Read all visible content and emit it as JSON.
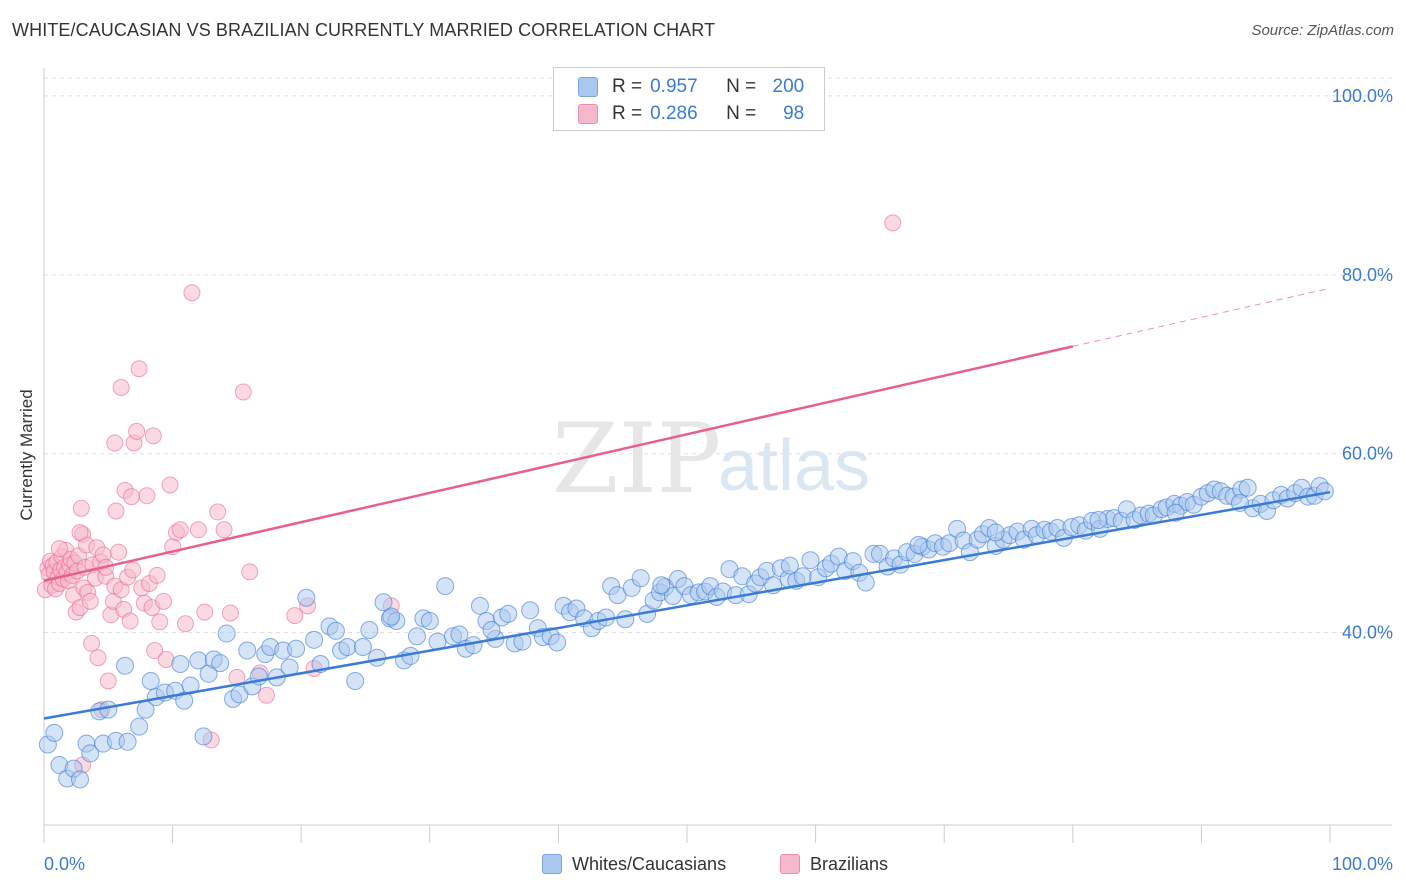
{
  "header": {
    "title": "WHITE/CAUCASIAN VS BRAZILIAN CURRENTLY MARRIED CORRELATION CHART",
    "source": "Source: ZipAtlas.com"
  },
  "legend_top": {
    "rows": [
      {
        "r_label": "R =",
        "r_value": "0.957",
        "n_label": "N =",
        "n_value": "200"
      },
      {
        "r_label": "R =",
        "r_value": "0.286",
        "n_label": "N =",
        "n_value": "98"
      }
    ]
  },
  "legend_bottom": {
    "items": [
      {
        "label": "Whites/Caucasians"
      },
      {
        "label": "Brazilians"
      }
    ]
  },
  "watermark": {
    "zip": "ZIP",
    "atlas": "atlas"
  },
  "colors": {
    "blue": "#3a7bd5",
    "blue_fill": "#a9c8ee",
    "pink": "#e8608a",
    "pink_fill": "#f6b9cc",
    "axis_text": "#3a7bd5",
    "grid": "#dddddd"
  },
  "chart_data": {
    "type": "scatter",
    "title": "WHITE/CAUCASIAN VS BRAZILIAN CURRENTLY MARRIED CORRELATION CHART",
    "xlabel": "",
    "ylabel": "Currently Married",
    "xlim": [
      0,
      100
    ],
    "ylim": [
      18.5,
      102
    ],
    "x_tick_labels": [
      "0.0%",
      "100.0%"
    ],
    "y_ticks": [
      40,
      60,
      80,
      100
    ],
    "y_tick_labels": [
      "40.0%",
      "60.0%",
      "80.0%",
      "100.0%"
    ],
    "grid": true,
    "series": [
      {
        "name": "Whites/Caucasians",
        "R": 0.957,
        "N": 200,
        "trend": {
          "x0": 0,
          "y0": 30.4,
          "x1": 100,
          "y1": 55.7
        },
        "points": [
          [
            0.3,
            27.5
          ],
          [
            0.8,
            28.8
          ],
          [
            1.2,
            25.2
          ],
          [
            1.8,
            23.7
          ],
          [
            2.3,
            24.8
          ],
          [
            2.8,
            23.6
          ],
          [
            3.3,
            27.6
          ],
          [
            3.6,
            26.5
          ],
          [
            4.3,
            31.2
          ],
          [
            4.6,
            27.6
          ],
          [
            5.0,
            31.4
          ],
          [
            5.6,
            27.9
          ],
          [
            6.3,
            36.3
          ],
          [
            6.5,
            27.8
          ],
          [
            7.4,
            29.5
          ],
          [
            7.9,
            31.4
          ],
          [
            8.3,
            34.6
          ],
          [
            8.7,
            32.8
          ],
          [
            9.4,
            33.3
          ],
          [
            10.2,
            33.5
          ],
          [
            10.6,
            36.5
          ],
          [
            10.9,
            32.4
          ],
          [
            11.4,
            34.1
          ],
          [
            12.0,
            36.9
          ],
          [
            12.4,
            28.4
          ],
          [
            12.8,
            35.4
          ],
          [
            13.2,
            37.0
          ],
          [
            13.7,
            36.6
          ],
          [
            14.2,
            39.9
          ],
          [
            14.7,
            32.6
          ],
          [
            15.2,
            33.1
          ],
          [
            15.8,
            38.0
          ],
          [
            16.2,
            34.0
          ],
          [
            16.7,
            35.1
          ],
          [
            17.2,
            37.6
          ],
          [
            17.6,
            38.4
          ],
          [
            18.1,
            35.0
          ],
          [
            18.6,
            38.0
          ],
          [
            19.1,
            36.1
          ],
          [
            19.6,
            38.2
          ],
          [
            20.4,
            43.9
          ],
          [
            21.0,
            39.2
          ],
          [
            21.5,
            36.5
          ],
          [
            22.2,
            40.7
          ],
          [
            22.7,
            40.2
          ],
          [
            23.1,
            38.0
          ],
          [
            23.6,
            38.4
          ],
          [
            24.2,
            34.6
          ],
          [
            24.8,
            38.4
          ],
          [
            25.3,
            40.3
          ],
          [
            25.9,
            37.2
          ],
          [
            26.4,
            43.4
          ],
          [
            26.9,
            41.6
          ],
          [
            27.4,
            41.3
          ],
          [
            28.0,
            36.9
          ],
          [
            28.5,
            37.4
          ],
          [
            29.0,
            39.6
          ],
          [
            29.5,
            41.6
          ],
          [
            30.0,
            41.3
          ],
          [
            30.6,
            39.0
          ],
          [
            31.2,
            45.2
          ],
          [
            31.8,
            39.6
          ],
          [
            32.3,
            39.8
          ],
          [
            32.8,
            38.2
          ],
          [
            33.4,
            38.6
          ],
          [
            33.9,
            43.0
          ],
          [
            34.4,
            41.3
          ],
          [
            35.1,
            39.3
          ],
          [
            35.6,
            41.7
          ],
          [
            36.1,
            42.1
          ],
          [
            36.6,
            38.8
          ],
          [
            37.2,
            39.0
          ],
          [
            37.8,
            42.5
          ],
          [
            38.4,
            40.5
          ],
          [
            38.8,
            39.5
          ],
          [
            39.4,
            39.6
          ],
          [
            39.9,
            38.9
          ],
          [
            40.4,
            43.0
          ],
          [
            40.9,
            42.3
          ],
          [
            41.4,
            42.7
          ],
          [
            42.0,
            41.6
          ],
          [
            42.6,
            40.5
          ],
          [
            43.1,
            41.3
          ],
          [
            43.7,
            41.7
          ],
          [
            44.1,
            45.2
          ],
          [
            44.6,
            44.2
          ],
          [
            45.2,
            41.5
          ],
          [
            45.7,
            45.0
          ],
          [
            46.4,
            46.1
          ],
          [
            46.9,
            42.1
          ],
          [
            47.4,
            43.6
          ],
          [
            47.9,
            44.5
          ],
          [
            48.3,
            45.1
          ],
          [
            48.9,
            44.1
          ],
          [
            49.3,
            46.0
          ],
          [
            49.8,
            45.2
          ],
          [
            50.3,
            44.2
          ],
          [
            50.9,
            44.5
          ],
          [
            51.4,
            44.6
          ],
          [
            51.8,
            45.2
          ],
          [
            52.3,
            44.0
          ],
          [
            52.8,
            44.6
          ],
          [
            53.3,
            47.1
          ],
          [
            53.8,
            44.2
          ],
          [
            54.3,
            46.3
          ],
          [
            54.8,
            44.3
          ],
          [
            55.3,
            45.5
          ],
          [
            55.7,
            46.2
          ],
          [
            56.2,
            46.9
          ],
          [
            56.7,
            45.3
          ],
          [
            57.3,
            47.2
          ],
          [
            57.9,
            46.0
          ],
          [
            58.5,
            45.8
          ],
          [
            59.0,
            46.3
          ],
          [
            59.6,
            48.1
          ],
          [
            60.2,
            46.2
          ],
          [
            60.8,
            47.2
          ],
          [
            61.2,
            47.7
          ],
          [
            61.8,
            48.5
          ],
          [
            62.3,
            46.9
          ],
          [
            62.9,
            48.0
          ],
          [
            63.4,
            46.7
          ],
          [
            63.9,
            45.6
          ],
          [
            64.5,
            48.8
          ],
          [
            65.0,
            48.8
          ],
          [
            65.6,
            47.4
          ],
          [
            66.1,
            48.3
          ],
          [
            66.6,
            47.6
          ],
          [
            67.1,
            49.0
          ],
          [
            67.7,
            48.8
          ],
          [
            68.3,
            49.6
          ],
          [
            68.8,
            49.3
          ],
          [
            69.3,
            50.0
          ],
          [
            69.9,
            49.6
          ],
          [
            70.4,
            50.0
          ],
          [
            71.0,
            51.6
          ],
          [
            71.5,
            50.3
          ],
          [
            72.0,
            49.0
          ],
          [
            72.6,
            50.4
          ],
          [
            73.0,
            51.0
          ],
          [
            73.5,
            51.7
          ],
          [
            74.0,
            49.7
          ],
          [
            74.6,
            50.4
          ],
          [
            75.1,
            50.9
          ],
          [
            75.7,
            51.3
          ],
          [
            76.2,
            50.4
          ],
          [
            76.8,
            51.6
          ],
          [
            77.2,
            50.9
          ],
          [
            77.8,
            51.5
          ],
          [
            78.3,
            51.3
          ],
          [
            78.8,
            51.7
          ],
          [
            79.3,
            50.6
          ],
          [
            79.9,
            51.8
          ],
          [
            80.5,
            52.0
          ],
          [
            81.0,
            51.4
          ],
          [
            81.5,
            52.5
          ],
          [
            82.1,
            51.6
          ],
          [
            82.7,
            52.7
          ],
          [
            83.2,
            52.8
          ],
          [
            83.8,
            52.5
          ],
          [
            84.2,
            53.8
          ],
          [
            84.8,
            52.6
          ],
          [
            85.3,
            53.1
          ],
          [
            85.9,
            53.3
          ],
          [
            86.3,
            53.1
          ],
          [
            86.9,
            53.8
          ],
          [
            87.3,
            54.0
          ],
          [
            87.9,
            54.4
          ],
          [
            88.4,
            54.2
          ],
          [
            88.9,
            54.6
          ],
          [
            89.4,
            54.3
          ],
          [
            90.0,
            55.2
          ],
          [
            90.5,
            55.6
          ],
          [
            91.0,
            56.0
          ],
          [
            91.5,
            55.8
          ],
          [
            92.0,
            55.3
          ],
          [
            92.5,
            55.2
          ],
          [
            93.1,
            56.0
          ],
          [
            93.6,
            56.2
          ],
          [
            94.0,
            53.9
          ],
          [
            94.6,
            54.4
          ],
          [
            95.1,
            53.6
          ],
          [
            95.6,
            54.8
          ],
          [
            96.2,
            55.4
          ],
          [
            96.7,
            55.0
          ],
          [
            97.3,
            55.6
          ],
          [
            97.8,
            56.2
          ],
          [
            98.3,
            55.2
          ],
          [
            98.8,
            55.3
          ],
          [
            99.2,
            56.4
          ],
          [
            99.6,
            55.8
          ],
          [
            27.0,
            41.8
          ],
          [
            34.8,
            40.3
          ],
          [
            48.0,
            45.3
          ],
          [
            58.0,
            47.5
          ],
          [
            68.0,
            49.8
          ],
          [
            74.0,
            51.2
          ],
          [
            82.0,
            52.6
          ],
          [
            88.0,
            53.4
          ],
          [
            93.0,
            54.5
          ]
        ]
      },
      {
        "name": "Brazilians",
        "R": 0.286,
        "N": 98,
        "trend": {
          "x0": 0,
          "y0": 45.8,
          "x1": 80,
          "y1": 72.0,
          "dashed_to_x": 100,
          "dashed_to_y": 78.5
        },
        "points": [
          [
            0.1,
            44.8
          ],
          [
            0.3,
            47.2
          ],
          [
            0.4,
            46.5
          ],
          [
            0.5,
            48.0
          ],
          [
            0.6,
            45.3
          ],
          [
            0.7,
            47.5
          ],
          [
            0.8,
            46.8
          ],
          [
            0.9,
            44.9
          ],
          [
            1.0,
            47.9
          ],
          [
            1.1,
            46.2
          ],
          [
            1.2,
            45.5
          ],
          [
            1.3,
            47.0
          ],
          [
            1.4,
            48.5
          ],
          [
            1.5,
            46.0
          ],
          [
            1.6,
            47.3
          ],
          [
            1.7,
            49.2
          ],
          [
            1.8,
            46.7
          ],
          [
            1.9,
            45.8
          ],
          [
            2.0,
            47.6
          ],
          [
            2.1,
            48.2
          ],
          [
            2.2,
            46.4
          ],
          [
            2.3,
            44.2
          ],
          [
            2.4,
            47.8
          ],
          [
            2.5,
            42.3
          ],
          [
            2.6,
            46.9
          ],
          [
            2.7,
            48.6
          ],
          [
            2.8,
            42.8
          ],
          [
            2.9,
            53.9
          ],
          [
            3.0,
            51.0
          ],
          [
            3.1,
            45.0
          ],
          [
            3.2,
            47.3
          ],
          [
            3.3,
            49.8
          ],
          [
            3.4,
            44.5
          ],
          [
            3.6,
            43.5
          ],
          [
            3.7,
            38.8
          ],
          [
            3.8,
            47.6
          ],
          [
            4.0,
            46.1
          ],
          [
            4.1,
            49.5
          ],
          [
            4.2,
            37.2
          ],
          [
            4.4,
            47.9
          ],
          [
            4.5,
            31.4
          ],
          [
            4.6,
            48.7
          ],
          [
            4.8,
            46.3
          ],
          [
            5.0,
            34.6
          ],
          [
            5.2,
            42.0
          ],
          [
            5.4,
            43.5
          ],
          [
            5.5,
            45.2
          ],
          [
            5.6,
            53.6
          ],
          [
            5.8,
            49.0
          ],
          [
            6.0,
            44.8
          ],
          [
            6.2,
            42.6
          ],
          [
            6.3,
            55.9
          ],
          [
            6.5,
            46.2
          ],
          [
            6.7,
            41.3
          ],
          [
            6.9,
            47.0
          ],
          [
            7.0,
            61.2
          ],
          [
            7.2,
            62.5
          ],
          [
            7.4,
            69.5
          ],
          [
            7.6,
            45.0
          ],
          [
            7.8,
            43.3
          ],
          [
            8.0,
            55.3
          ],
          [
            8.2,
            45.5
          ],
          [
            8.4,
            42.8
          ],
          [
            8.6,
            38.0
          ],
          [
            8.8,
            46.4
          ],
          [
            9.0,
            41.2
          ],
          [
            9.3,
            43.5
          ],
          [
            9.5,
            37.0
          ],
          [
            9.8,
            56.5
          ],
          [
            10.0,
            49.6
          ],
          [
            10.3,
            51.2
          ],
          [
            10.6,
            51.5
          ],
          [
            11.0,
            41.0
          ],
          [
            11.5,
            78.0
          ],
          [
            12.0,
            51.5
          ],
          [
            12.5,
            42.3
          ],
          [
            13.0,
            28.0
          ],
          [
            13.5,
            53.5
          ],
          [
            14.0,
            51.5
          ],
          [
            14.5,
            42.2
          ],
          [
            15.0,
            35.0
          ],
          [
            15.5,
            66.9
          ],
          [
            16.0,
            46.8
          ],
          [
            16.8,
            35.5
          ],
          [
            17.3,
            33.0
          ],
          [
            19.5,
            41.9
          ],
          [
            20.5,
            43.0
          ],
          [
            21.0,
            36.0
          ],
          [
            27.0,
            43.0
          ],
          [
            66.0,
            85.8
          ],
          [
            3.0,
            25.2
          ],
          [
            6.0,
            67.4
          ],
          [
            5.5,
            61.2
          ],
          [
            8.5,
            62.0
          ],
          [
            4.8,
            47.3
          ],
          [
            1.2,
            49.4
          ],
          [
            2.8,
            51.2
          ],
          [
            6.8,
            55.2
          ]
        ]
      }
    ]
  }
}
